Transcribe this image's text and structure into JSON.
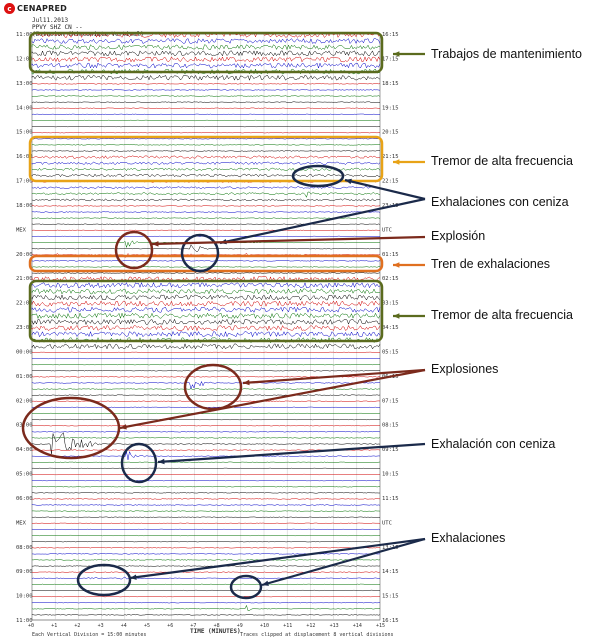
{
  "header": {
    "logo_text": "CENAPRED",
    "date_line": "Jul11.2013",
    "station_line": "PPVY SHZ CN --",
    "title_line": "(Estacion Chinconiata Vertical)"
  },
  "left_times": [
    "11:00",
    "12:00",
    "13:00",
    "14:00",
    "15:00",
    "16:00",
    "17:00",
    "18:00",
    "MEX",
    "20:00",
    "21:00",
    "22:00",
    "23:00",
    "00:00",
    "01:00",
    "02:00",
    "03:00",
    "04:00",
    "05:00",
    "06:00",
    "MEX",
    "08:00",
    "09:00",
    "10:00",
    "11:00"
  ],
  "right_times": [
    "16:15",
    "17:15",
    "18:15",
    "19:15",
    "20:15",
    "21:15",
    "22:15",
    "23:15",
    "UTC",
    "01:15",
    "02:15",
    "03:15",
    "04:15",
    "05:15",
    "06:15",
    "07:15",
    "08:15",
    "09:15",
    "10:15",
    "11:15",
    "UTC",
    "13:15",
    "14:15",
    "15:15",
    "16:15"
  ],
  "x_axis": {
    "ticks": [
      "+0",
      "+1",
      "+2",
      "+3",
      "+4",
      "+5",
      "+6",
      "+7",
      "+8",
      "+9",
      "+10",
      "+11",
      "+12",
      "+13",
      "+14",
      "+15"
    ],
    "title": "TIME (MINUTES)"
  },
  "footer": {
    "left_text": "Each Vertical Division = 15:00 minutes",
    "right_text": "Traces clipped at displacement 8 vertical divisions"
  },
  "annotations": [
    {
      "label": "Trabajos de mantenimiento",
      "color": "#5b6b1e"
    },
    {
      "label": "Tremor de alta frecuencia",
      "color": "#e8a317"
    },
    {
      "label": "Exhalaciones con ceniza",
      "color": "#1b2a4a"
    },
    {
      "label": "Explosión",
      "color": "#7b2a1c"
    },
    {
      "label": "Tren de exhalaciones",
      "color": "#e07020"
    },
    {
      "label": "Tremor de alta frecuencia",
      "color": "#5b6b1e"
    },
    {
      "label": "Explosiones",
      "color": "#7b2a1c"
    },
    {
      "label": "Exhalación con ceniza",
      "color": "#1b2a4a"
    },
    {
      "label": "Exhalaciones",
      "color": "#1b2a4a"
    }
  ],
  "trace_colors": [
    "#d00000",
    "#0000c8",
    "#007000",
    "#000000"
  ]
}
